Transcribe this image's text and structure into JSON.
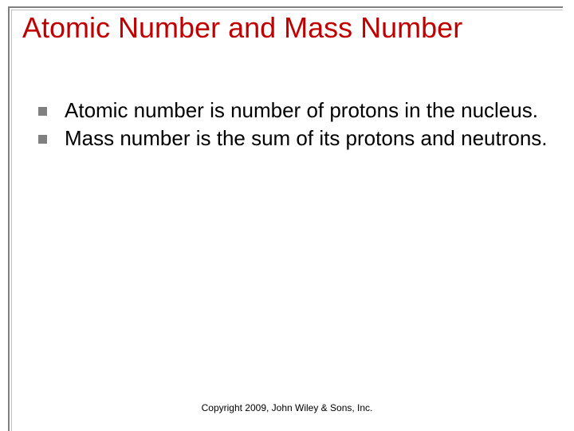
{
  "title_text": "Atomic Number and Mass Number",
  "title_color": "#c00000",
  "title_fontsize": 36,
  "bullets": [
    {
      "text": "Atomic number is number of protons in the nucleus."
    },
    {
      "text": "Mass number is the sum of its protons and neutrons."
    }
  ],
  "bullet_marker_color": "#808080",
  "bullet_text_color": "#000000",
  "bullet_fontsize": 26,
  "footer_text": "Copyright 2009, John Wiley & Sons, Inc.",
  "footer_fontsize": 12,
  "background_color": "#ffffff",
  "frame_border_color": "#808080"
}
